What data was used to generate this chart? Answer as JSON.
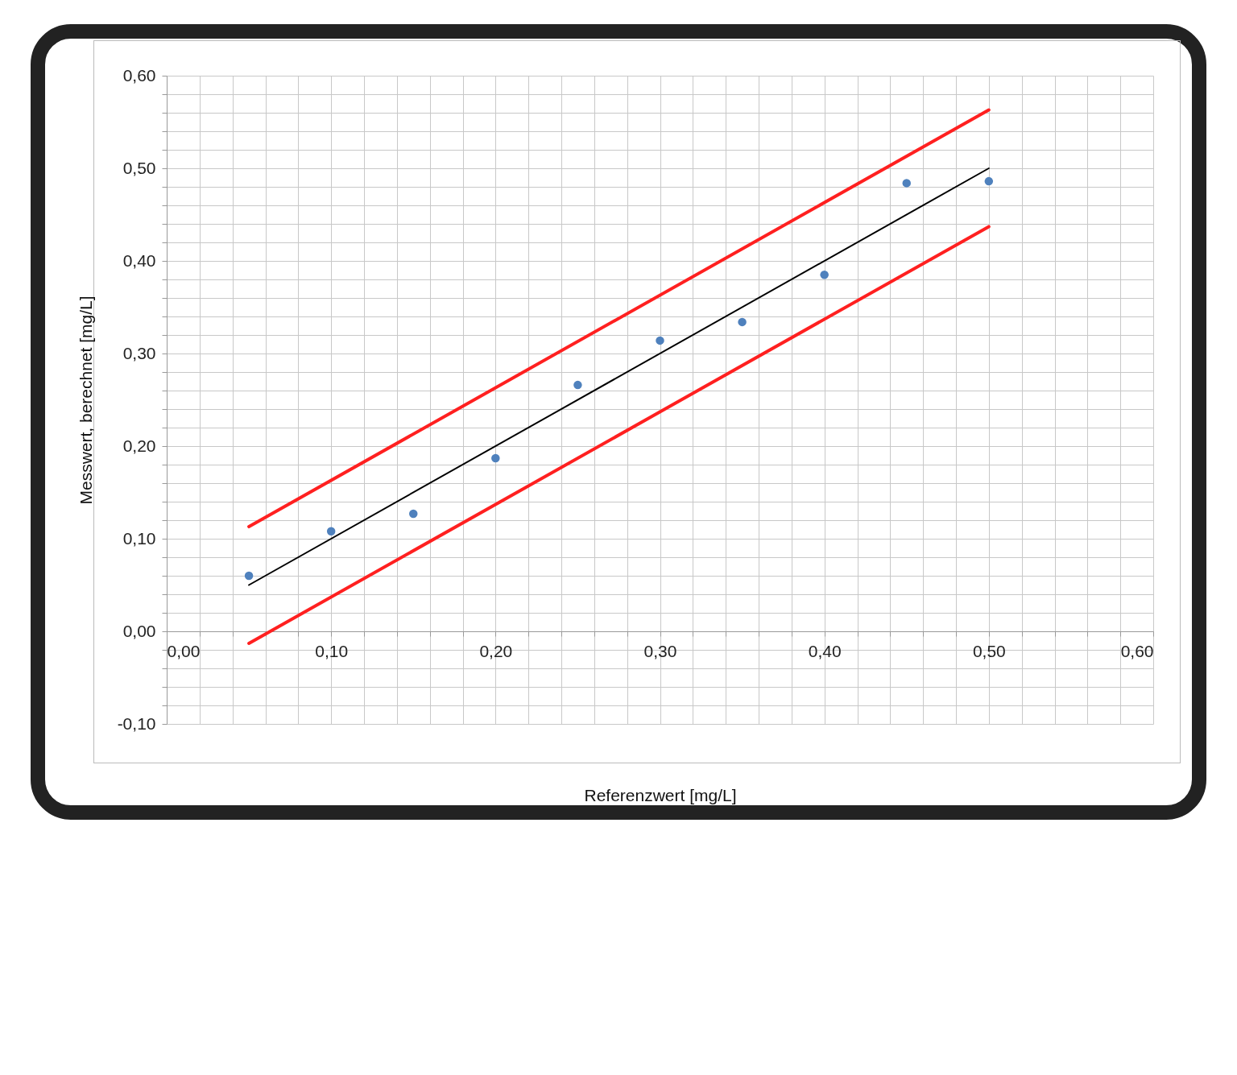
{
  "chart_data": {
    "type": "scatter",
    "xlabel": "Referenzwert [mg/L]",
    "ylabel": "Messwert, berechnet [mg/L]",
    "xlim": [
      0,
      0.6
    ],
    "ylim": [
      -0.1,
      0.6
    ],
    "xticks": [
      {
        "value": 0,
        "label": "0,00"
      },
      {
        "value": 0.02,
        "label": null
      },
      {
        "value": 0.04,
        "label": null
      },
      {
        "value": 0.06,
        "label": null
      },
      {
        "value": 0.08,
        "label": null
      },
      {
        "value": 0.1,
        "label": "0,10"
      },
      {
        "value": 0.12,
        "label": null
      },
      {
        "value": 0.14,
        "label": null
      },
      {
        "value": 0.16,
        "label": null
      },
      {
        "value": 0.18,
        "label": null
      },
      {
        "value": 0.2,
        "label": "0,20"
      },
      {
        "value": 0.22,
        "label": null
      },
      {
        "value": 0.24,
        "label": null
      },
      {
        "value": 0.26,
        "label": null
      },
      {
        "value": 0.28,
        "label": null
      },
      {
        "value": 0.3,
        "label": "0,30"
      },
      {
        "value": 0.32,
        "label": null
      },
      {
        "value": 0.34,
        "label": null
      },
      {
        "value": 0.36,
        "label": null
      },
      {
        "value": 0.38,
        "label": null
      },
      {
        "value": 0.4,
        "label": "0,40"
      },
      {
        "value": 0.42,
        "label": null
      },
      {
        "value": 0.44,
        "label": null
      },
      {
        "value": 0.46,
        "label": null
      },
      {
        "value": 0.48,
        "label": null
      },
      {
        "value": 0.5,
        "label": "0,50"
      },
      {
        "value": 0.52,
        "label": null
      },
      {
        "value": 0.54,
        "label": null
      },
      {
        "value": 0.56,
        "label": null
      },
      {
        "value": 0.58,
        "label": null
      },
      {
        "value": 0.6,
        "label": "0,60"
      }
    ],
    "yticks": [
      {
        "value": -0.1,
        "label": "-0,10"
      },
      {
        "value": -0.08,
        "label": null
      },
      {
        "value": -0.06,
        "label": null
      },
      {
        "value": -0.04,
        "label": null
      },
      {
        "value": -0.02,
        "label": null
      },
      {
        "value": 0,
        "label": "0,00"
      },
      {
        "value": 0.02,
        "label": null
      },
      {
        "value": 0.04,
        "label": null
      },
      {
        "value": 0.06,
        "label": null
      },
      {
        "value": 0.08,
        "label": null
      },
      {
        "value": 0.1,
        "label": "0,10"
      },
      {
        "value": 0.12,
        "label": null
      },
      {
        "value": 0.14,
        "label": null
      },
      {
        "value": 0.16,
        "label": null
      },
      {
        "value": 0.18,
        "label": null
      },
      {
        "value": 0.2,
        "label": "0,20"
      },
      {
        "value": 0.22,
        "label": null
      },
      {
        "value": 0.24,
        "label": null
      },
      {
        "value": 0.26,
        "label": null
      },
      {
        "value": 0.28,
        "label": null
      },
      {
        "value": 0.3,
        "label": "0,30"
      },
      {
        "value": 0.32,
        "label": null
      },
      {
        "value": 0.34,
        "label": null
      },
      {
        "value": 0.36,
        "label": null
      },
      {
        "value": 0.38,
        "label": null
      },
      {
        "value": 0.4,
        "label": "0,40"
      },
      {
        "value": 0.42,
        "label": null
      },
      {
        "value": 0.44,
        "label": null
      },
      {
        "value": 0.46,
        "label": null
      },
      {
        "value": 0.48,
        "label": null
      },
      {
        "value": 0.5,
        "label": "0,50"
      },
      {
        "value": 0.52,
        "label": null
      },
      {
        "value": 0.54,
        "label": null
      },
      {
        "value": 0.56,
        "label": null
      },
      {
        "value": 0.58,
        "label": null
      },
      {
        "value": 0.6,
        "label": "0,60"
      }
    ],
    "grid": true,
    "line_style": "solid",
    "series": [
      {
        "marker": "circle",
        "color": "#4f81bd",
        "x": [
          0.05,
          0.1,
          0.15,
          0.2,
          0.25,
          0.3,
          0.35,
          0.4,
          0.45,
          0.5
        ],
        "values": [
          0.06,
          0.108,
          0.127,
          0.187,
          0.266,
          0.314,
          0.334,
          0.385,
          0.484,
          0.486
        ]
      },
      {
        "type": "line",
        "color": "#000000",
        "x": [
          0.05,
          0.5
        ],
        "values": [
          0.05,
          0.5
        ]
      },
      {
        "type": "line",
        "color": "#ff2020",
        "x": [
          0.05,
          0.5
        ],
        "values": [
          0.113,
          0.563
        ]
      },
      {
        "type": "line",
        "color": "#ff2020",
        "x": [
          0.05,
          0.5
        ],
        "values": [
          -0.013,
          0.437
        ]
      }
    ]
  }
}
